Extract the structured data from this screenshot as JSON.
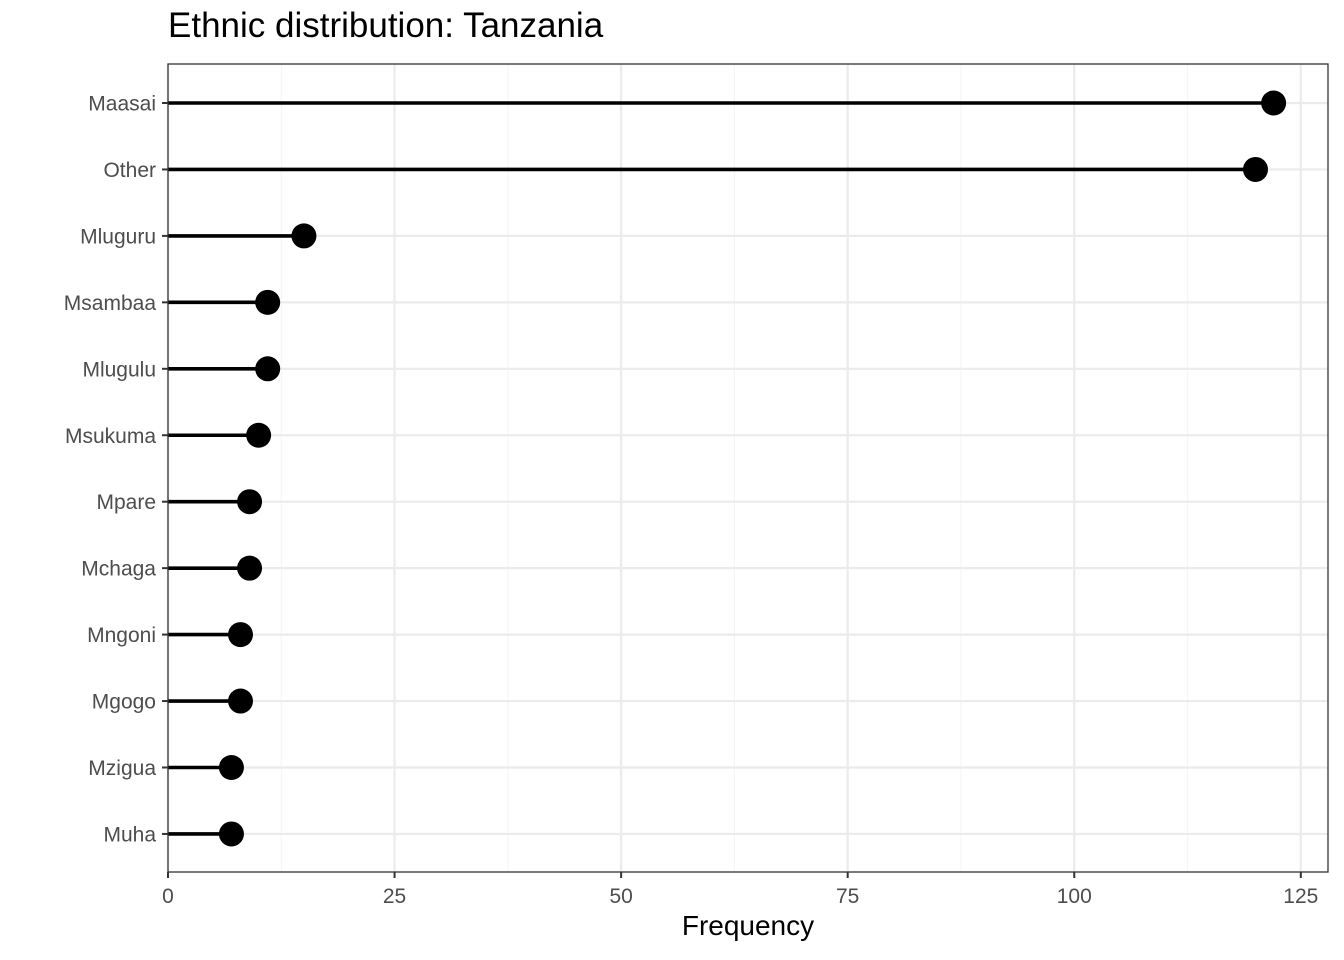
{
  "chart_data": {
    "type": "lollipop",
    "title": "Ethnic distribution: Tanzania",
    "xlabel": "Frequency",
    "ylabel": "",
    "xlim": [
      0,
      128
    ],
    "x_ticks": [
      0,
      25,
      50,
      75,
      100,
      125
    ],
    "grid": true,
    "colors": {
      "mark": "#000000",
      "grid_major": "#ebebeb",
      "grid_minor": "#f5f5f5",
      "panel_border": "#333333",
      "tick_label": "#4d4d4d"
    },
    "categories": [
      "Maasai",
      "Other",
      "Mluguru",
      "Msambaa",
      "Mlugulu",
      "Msukuma",
      "Mpare",
      "Mchaga",
      "Mngoni",
      "Mgogo",
      "Mzigua",
      "Muha"
    ],
    "values": [
      122,
      120,
      15,
      11,
      11,
      10,
      9,
      9,
      8,
      8,
      7,
      7
    ]
  }
}
